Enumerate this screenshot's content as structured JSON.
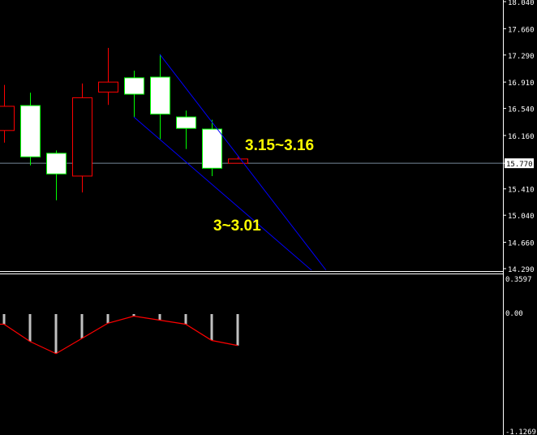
{
  "chart_data": [
    {
      "type": "candlestick",
      "price_axis": {
        "min": 14.29,
        "max": 18.04,
        "ticks": [
          "18.040",
          "17.660",
          "17.290",
          "16.910",
          "16.540",
          "16.160",
          "15.770",
          "15.410",
          "15.040",
          "14.660",
          "14.290"
        ]
      },
      "current_price": "15.770",
      "candles": [
        {
          "open": 16.57,
          "high": 16.87,
          "low": 16.06,
          "close": 16.23
        },
        {
          "open": 15.86,
          "high": 16.76,
          "low": 15.74,
          "close": 16.58
        },
        {
          "open": 15.62,
          "high": 15.95,
          "low": 15.25,
          "close": 15.91
        },
        {
          "open": 16.69,
          "high": 16.89,
          "low": 15.36,
          "close": 15.59
        },
        {
          "open": 16.91,
          "high": 17.39,
          "low": 16.59,
          "close": 16.77
        },
        {
          "open": 16.74,
          "high": 17.07,
          "low": 16.42,
          "close": 16.97
        },
        {
          "open": 16.46,
          "high": 17.3,
          "low": 16.11,
          "close": 16.98
        },
        {
          "open": 16.26,
          "high": 16.51,
          "low": 15.97,
          "close": 16.42
        },
        {
          "open": 15.7,
          "high": 16.38,
          "low": 15.59,
          "close": 16.25
        },
        {
          "open": 15.83,
          "high": 15.86,
          "low": 15.77,
          "close": 15.77
        }
      ],
      "trendlines": [
        {
          "from": {
            "bar": 6,
            "price": 17.3
          },
          "to": {
            "bar": 12.4,
            "price": 14.27
          }
        },
        {
          "from": {
            "bar": 5,
            "price": 16.42
          },
          "to": {
            "bar": 11.9,
            "price": 14.25
          }
        }
      ],
      "annotations": [
        "3.15~3.16",
        "3~3.01"
      ],
      "colors": {
        "bull_body": "#ffffff",
        "bull_border": "#00ff00",
        "bear_body": "#000000",
        "bear_border": "#ff0000",
        "trendline": "#0000ff",
        "annotation": "#ffff00",
        "price_line": "#778899"
      }
    },
    {
      "type": "bar+line",
      "axis": {
        "min": -1.1269,
        "max": 0.3597,
        "ticks": [
          "0.3597",
          "0.00",
          "-1.1269"
        ]
      },
      "histogram": [
        -0.1,
        -0.27,
        -0.39,
        -0.24,
        -0.09,
        -0.02,
        -0.06,
        -0.1,
        -0.26,
        -0.31
      ],
      "signal": [
        -0.1,
        -0.27,
        -0.39,
        -0.24,
        -0.09,
        -0.02,
        -0.06,
        -0.1,
        -0.26,
        -0.31
      ],
      "colors": {
        "histogram": "#c0c0c0",
        "signal": "#ff0000"
      }
    }
  ]
}
